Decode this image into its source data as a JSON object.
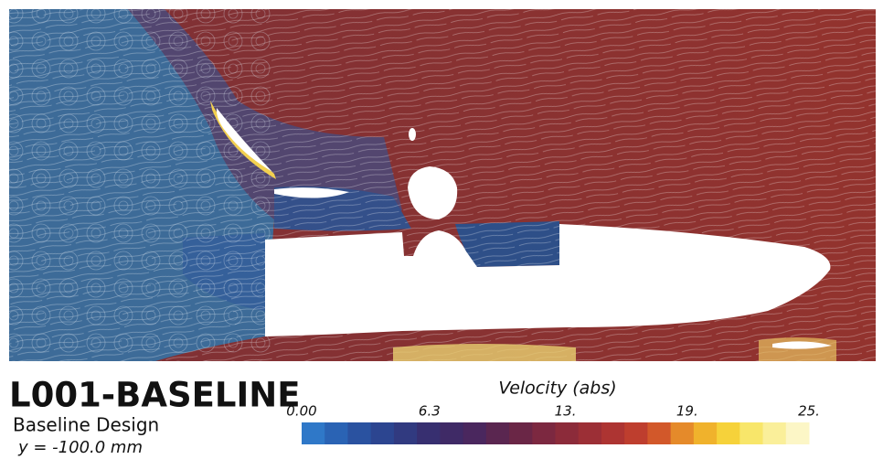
{
  "header": {
    "title": "L001-BASELINE",
    "subtitle": "Baseline Design",
    "plane": "y = -100.0 mm"
  },
  "colorbar": {
    "title": "Velocity (abs)",
    "lim": [
      0,
      25
    ],
    "ticks": [
      {
        "value": 0,
        "label": "0.00"
      },
      6.3,
      {
        "value": 13,
        "label": "13."
      },
      {
        "value": 19,
        "label": "19."
      },
      {
        "value": 25,
        "label": "25."
      }
    ],
    "colors": [
      "#2f78c8",
      "#2a63b4",
      "#2a52a0",
      "#2c4590",
      "#313a80",
      "#372f70",
      "#3f2a66",
      "#4a275e",
      "#5a2650",
      "#6a2646",
      "#7c2840",
      "#8c2b3a",
      "#9c2f36",
      "#ad3432",
      "#be3e2e",
      "#d2582a",
      "#e58a2a",
      "#f0b22c",
      "#f6d23a",
      "#f8e66a",
      "#faef9a",
      "#fcf6c6"
    ]
  }
}
